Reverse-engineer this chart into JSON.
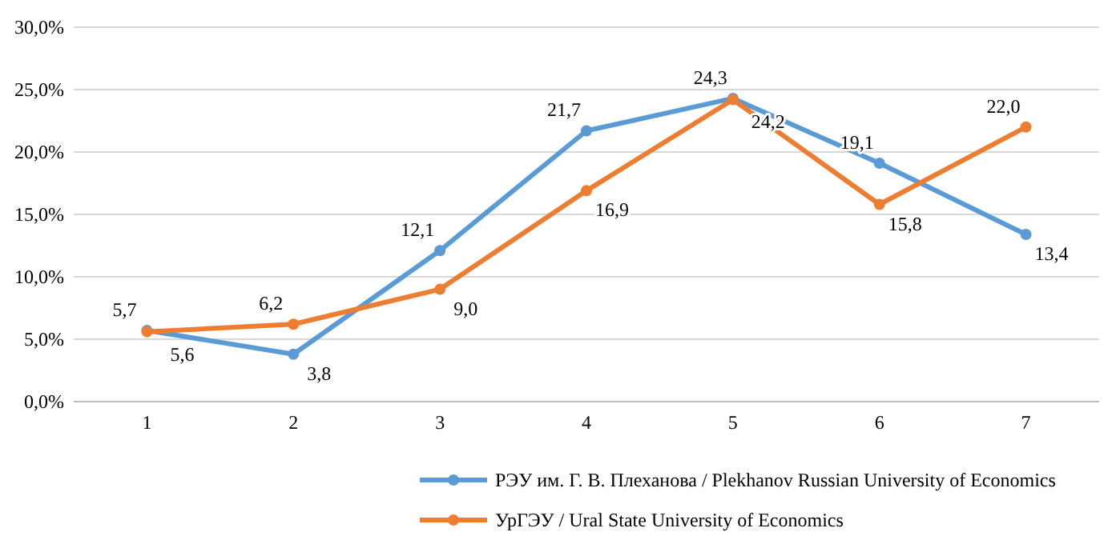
{
  "chart_data": {
    "type": "line",
    "categories": [
      "1",
      "2",
      "3",
      "4",
      "5",
      "6",
      "7"
    ],
    "series": [
      {
        "name": "РЭУ им. Г. В. Плеханова / Plekhanov Russian University of Economics",
        "color": "#5b9bd5",
        "values": [
          5.7,
          3.8,
          12.1,
          21.7,
          24.3,
          19.1,
          13.4
        ],
        "value_labels": [
          "5,7",
          "3,8",
          "12,1",
          "21,7",
          "24,3",
          "19,1",
          "13,4"
        ]
      },
      {
        "name": "УрГЭУ / Ural State University of Economics",
        "color": "#ed7d31",
        "values": [
          5.6,
          6.2,
          9.0,
          16.9,
          24.2,
          15.8,
          22.0
        ],
        "value_labels": [
          "5,6",
          "6,2",
          "9,0",
          "16,9",
          "24,2",
          "15,8",
          "22,0"
        ]
      }
    ],
    "ylim": [
      0,
      30
    ],
    "yticks": [
      {
        "value": 0,
        "label": "0,0%"
      },
      {
        "value": 5,
        "label": "5,0%"
      },
      {
        "value": 10,
        "label": "10,0%"
      },
      {
        "value": 15,
        "label": "15,0%"
      },
      {
        "value": 20,
        "label": "20,0%"
      },
      {
        "value": 25,
        "label": "25,0%"
      },
      {
        "value": 30,
        "label": "30,0%"
      }
    ],
    "grid": "y",
    "legend": "bottom",
    "marker": "circle",
    "line_style": "solid"
  }
}
